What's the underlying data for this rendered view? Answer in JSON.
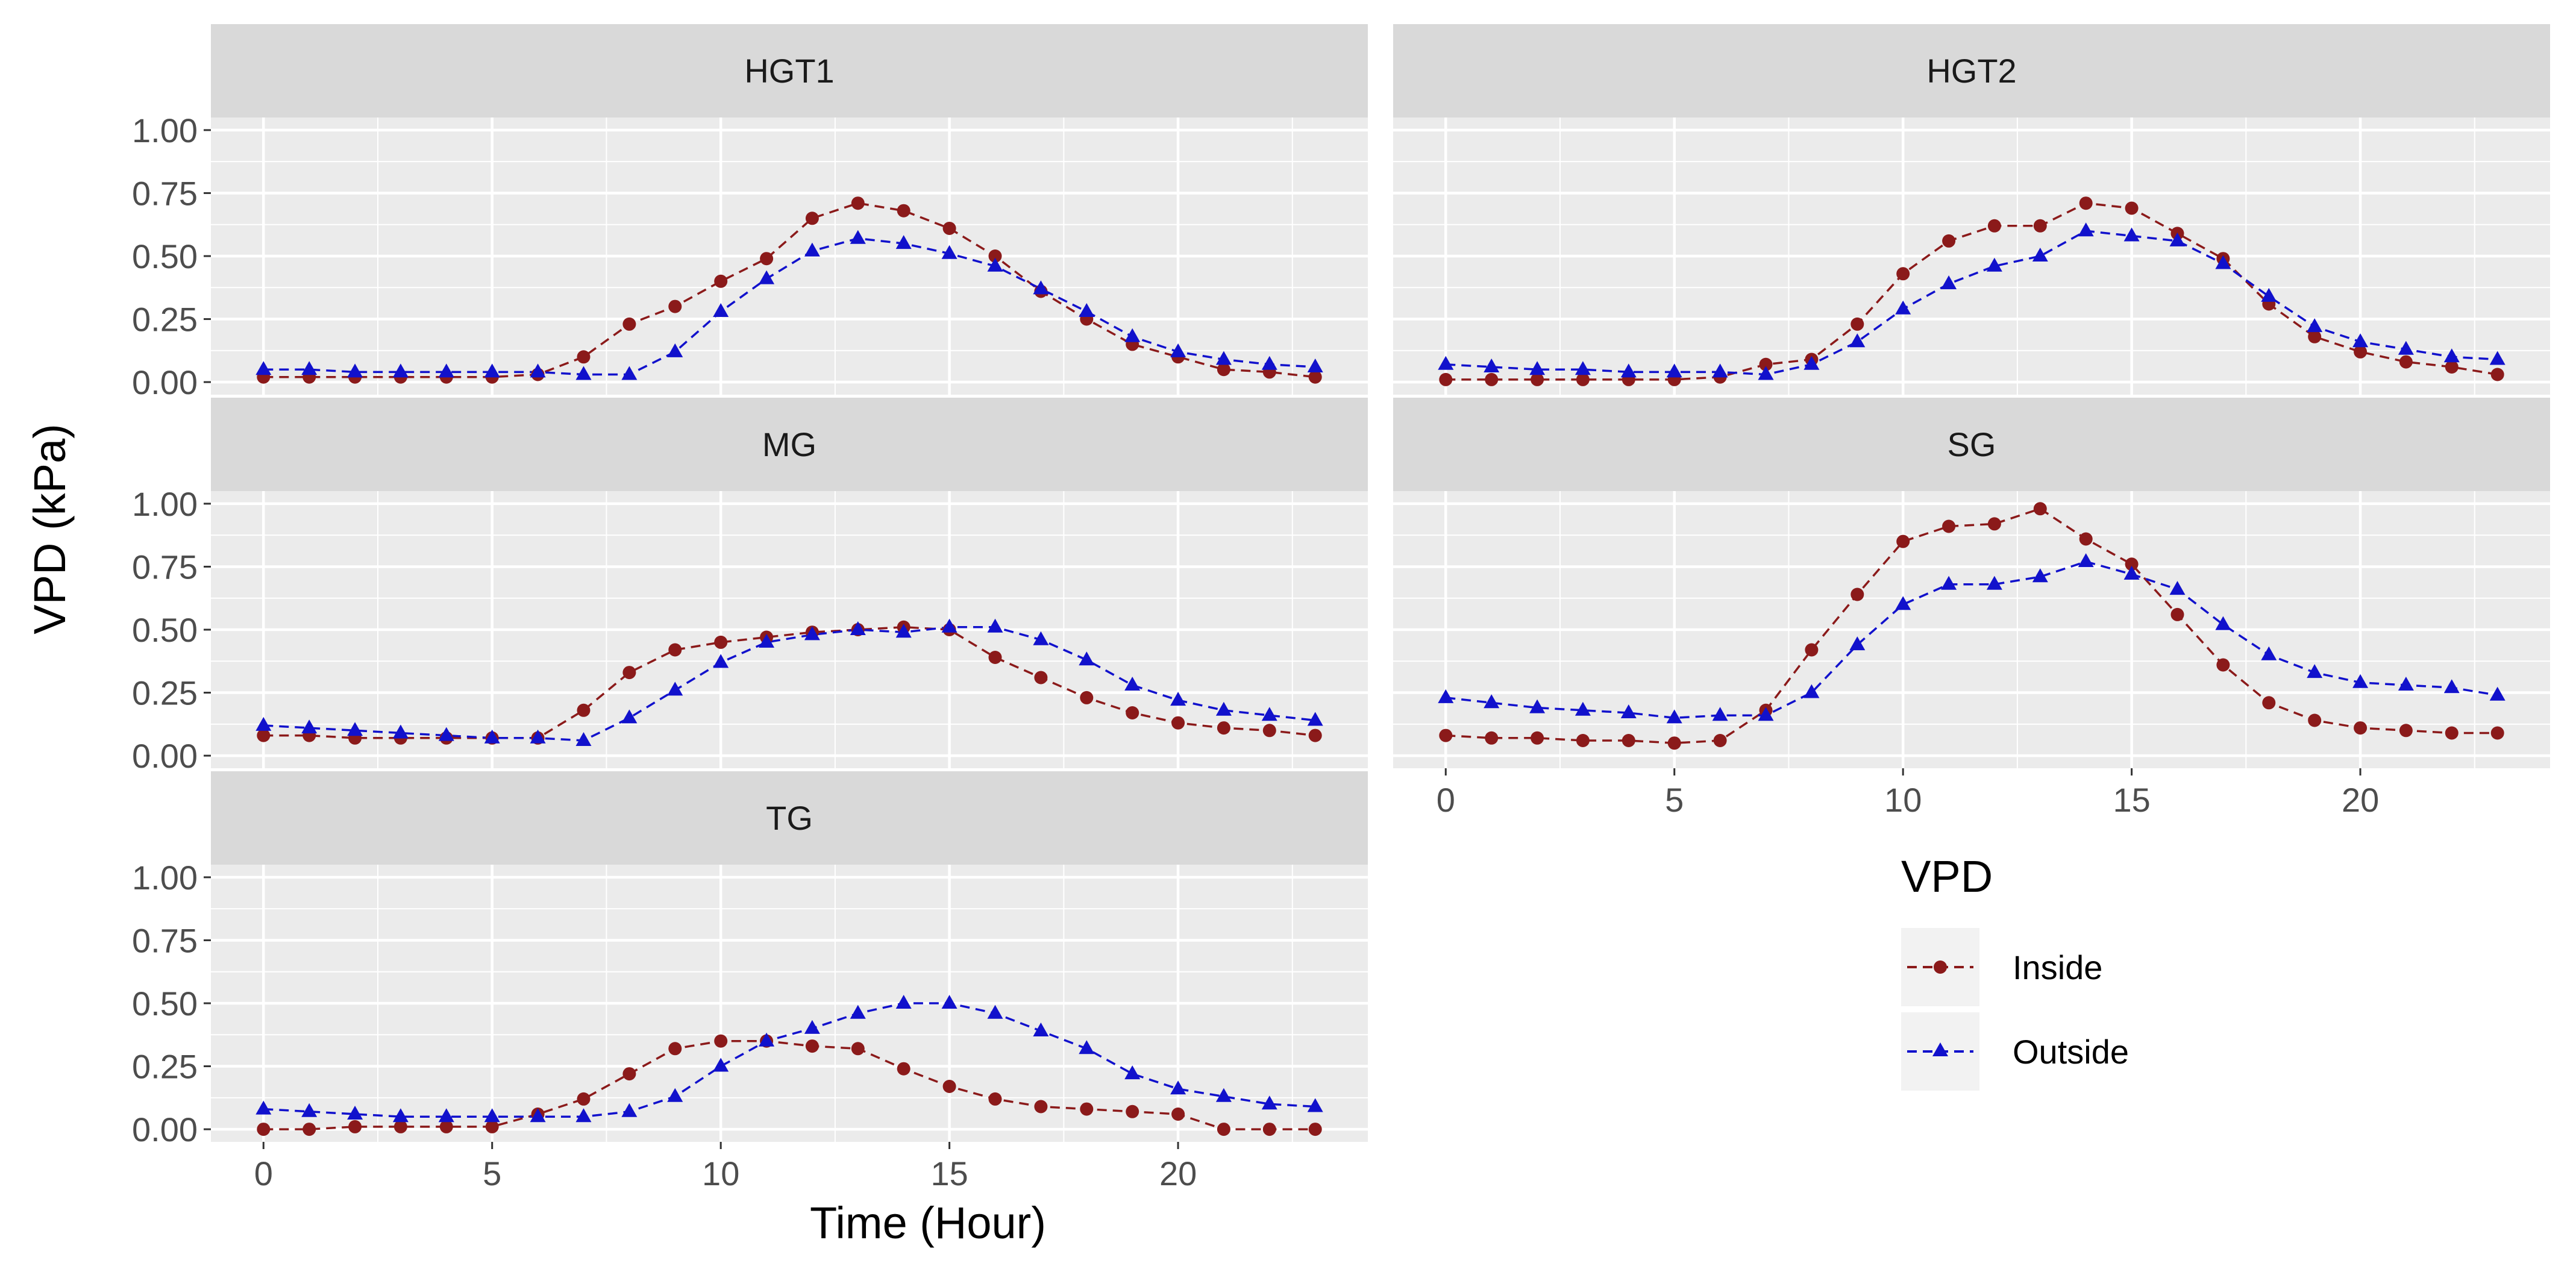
{
  "chart_data": {
    "type": "line",
    "ylabel": "VPD (kPa)",
    "xlabel": "Time (Hour)",
    "x": [
      0,
      1,
      2,
      3,
      4,
      5,
      6,
      7,
      8,
      9,
      10,
      11,
      12,
      13,
      14,
      15,
      16,
      17,
      18,
      19,
      20,
      21,
      22,
      23
    ],
    "xlim": [
      -1.15,
      24.15
    ],
    "ylim": [
      -0.05,
      1.05
    ],
    "x_ticks": [
      0,
      5,
      10,
      15,
      20
    ],
    "y_ticks": [
      0.0,
      0.25,
      0.5,
      0.75,
      1.0
    ],
    "y_tick_labels": [
      "0.00",
      "0.25",
      "0.50",
      "0.75",
      "1.00"
    ],
    "legend": {
      "title": "VPD",
      "position": "right",
      "items": [
        {
          "name": "Inside",
          "color": "#8B1A1A",
          "marker": "circle"
        },
        {
          "name": "Outside",
          "color": "#1111CC",
          "marker": "triangle"
        }
      ]
    },
    "panels": [
      {
        "title": "HGT1",
        "series": [
          {
            "name": "Inside",
            "values": [
              0.02,
              0.02,
              0.02,
              0.02,
              0.02,
              0.02,
              0.03,
              0.1,
              0.23,
              0.3,
              0.4,
              0.49,
              0.65,
              0.71,
              0.68,
              0.61,
              0.5,
              0.36,
              0.25,
              0.15,
              0.1,
              0.05,
              0.04,
              0.02
            ]
          },
          {
            "name": "Outside",
            "values": [
              0.05,
              0.05,
              0.04,
              0.04,
              0.04,
              0.04,
              0.04,
              0.03,
              0.03,
              0.12,
              0.28,
              0.41,
              0.52,
              0.57,
              0.55,
              0.51,
              0.46,
              0.37,
              0.28,
              0.18,
              0.12,
              0.09,
              0.07,
              0.06
            ]
          }
        ]
      },
      {
        "title": "HGT2",
        "series": [
          {
            "name": "Inside",
            "values": [
              0.01,
              0.01,
              0.01,
              0.01,
              0.01,
              0.01,
              0.02,
              0.07,
              0.09,
              0.23,
              0.43,
              0.56,
              0.62,
              0.62,
              0.71,
              0.69,
              0.59,
              0.49,
              0.31,
              0.18,
              0.12,
              0.08,
              0.06,
              0.03
            ]
          },
          {
            "name": "Outside",
            "values": [
              0.07,
              0.06,
              0.05,
              0.05,
              0.04,
              0.04,
              0.04,
              0.03,
              0.07,
              0.16,
              0.29,
              0.39,
              0.46,
              0.5,
              0.6,
              0.58,
              0.56,
              0.47,
              0.34,
              0.22,
              0.16,
              0.13,
              0.1,
              0.09
            ]
          }
        ]
      },
      {
        "title": "MG",
        "series": [
          {
            "name": "Inside",
            "values": [
              0.08,
              0.08,
              0.07,
              0.07,
              0.07,
              0.07,
              0.07,
              0.18,
              0.33,
              0.42,
              0.45,
              0.47,
              0.49,
              0.5,
              0.51,
              0.5,
              0.39,
              0.31,
              0.23,
              0.17,
              0.13,
              0.11,
              0.1,
              0.08
            ]
          },
          {
            "name": "Outside",
            "values": [
              0.12,
              0.11,
              0.1,
              0.09,
              0.08,
              0.07,
              0.07,
              0.06,
              0.15,
              0.26,
              0.37,
              0.45,
              0.48,
              0.5,
              0.49,
              0.51,
              0.51,
              0.46,
              0.38,
              0.28,
              0.22,
              0.18,
              0.16,
              0.14
            ]
          }
        ]
      },
      {
        "title": "SG",
        "series": [
          {
            "name": "Inside",
            "values": [
              0.08,
              0.07,
              0.07,
              0.06,
              0.06,
              0.05,
              0.06,
              0.18,
              0.42,
              0.64,
              0.85,
              0.91,
              0.92,
              0.98,
              0.86,
              0.76,
              0.56,
              0.36,
              0.21,
              0.14,
              0.11,
              0.1,
              0.09,
              0.09
            ]
          },
          {
            "name": "Outside",
            "values": [
              0.23,
              0.21,
              0.19,
              0.18,
              0.17,
              0.15,
              0.16,
              0.16,
              0.25,
              0.44,
              0.6,
              0.68,
              0.68,
              0.71,
              0.77,
              0.72,
              0.66,
              0.52,
              0.4,
              0.33,
              0.29,
              0.28,
              0.27,
              0.24
            ]
          }
        ]
      },
      {
        "title": "TG",
        "series": [
          {
            "name": "Inside",
            "values": [
              0.0,
              0.0,
              0.01,
              0.01,
              0.01,
              0.01,
              0.06,
              0.12,
              0.22,
              0.32,
              0.35,
              0.35,
              0.33,
              0.32,
              0.24,
              0.17,
              0.12,
              0.09,
              0.08,
              0.07,
              0.06,
              0.0,
              0.0,
              0.0
            ]
          },
          {
            "name": "Outside",
            "values": [
              0.08,
              0.07,
              0.06,
              0.05,
              0.05,
              0.05,
              0.05,
              0.05,
              0.07,
              0.13,
              0.25,
              0.35,
              0.4,
              0.46,
              0.5,
              0.5,
              0.46,
              0.39,
              0.32,
              0.22,
              0.16,
              0.13,
              0.1,
              0.09
            ]
          }
        ]
      }
    ]
  }
}
